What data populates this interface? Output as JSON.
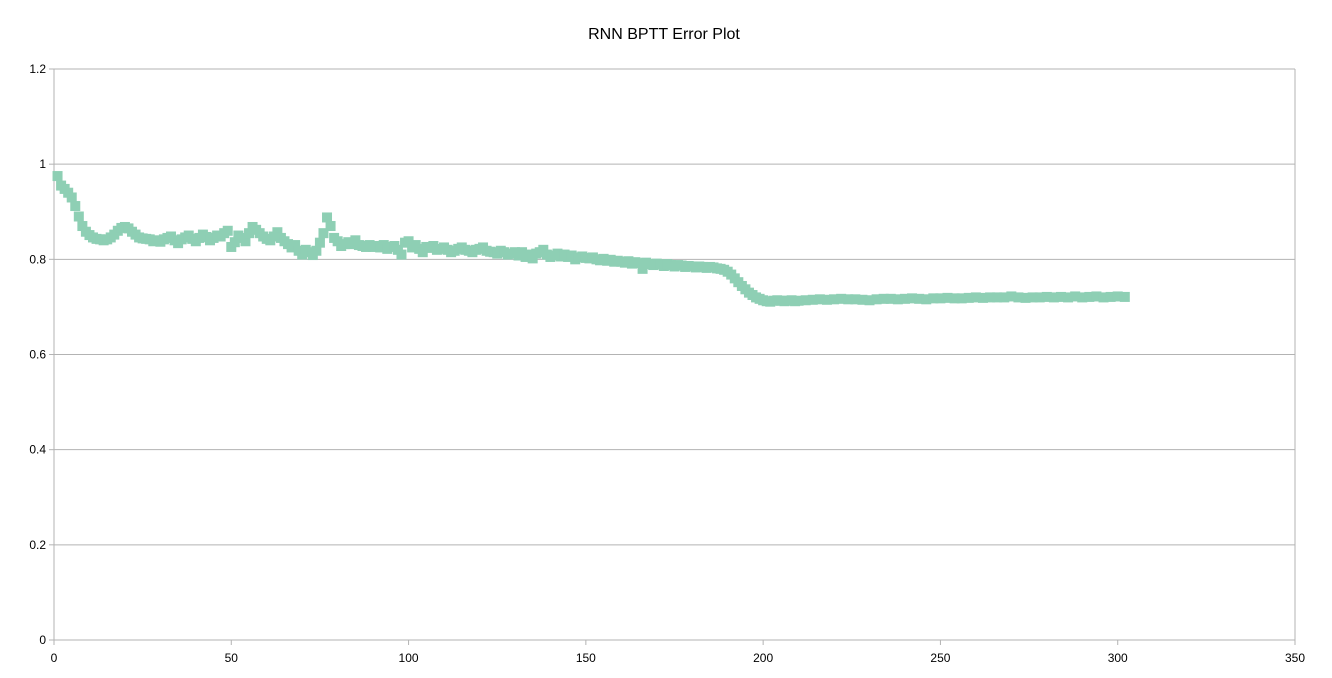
{
  "chart_data": {
    "type": "scatter",
    "title": "RNN BPTT Error Plot",
    "xlabel": "",
    "ylabel": "",
    "xlim": [
      0,
      350
    ],
    "ylim": [
      0,
      1.2
    ],
    "x_ticks": [
      0,
      50,
      100,
      150,
      200,
      250,
      300,
      350
    ],
    "y_ticks": [
      0,
      0.2,
      0.4,
      0.6,
      0.8,
      1,
      1.2
    ],
    "grid": true,
    "legend": "none",
    "marker": "square",
    "color": "#8ecfb4",
    "series": [
      {
        "points": [
          [
            1,
            0.975
          ],
          [
            2,
            0.955
          ],
          [
            3,
            0.948
          ],
          [
            4,
            0.94
          ],
          [
            5,
            0.93
          ],
          [
            6,
            0.912
          ],
          [
            7,
            0.89
          ],
          [
            8,
            0.87
          ],
          [
            9,
            0.858
          ],
          [
            10,
            0.851
          ],
          [
            11,
            0.846
          ],
          [
            12,
            0.843
          ],
          [
            13,
            0.842
          ],
          [
            14,
            0.84
          ],
          [
            15,
            0.842
          ],
          [
            16,
            0.846
          ],
          [
            17,
            0.852
          ],
          [
            18,
            0.86
          ],
          [
            19,
            0.866
          ],
          [
            20,
            0.868
          ],
          [
            21,
            0.865
          ],
          [
            22,
            0.858
          ],
          [
            23,
            0.852
          ],
          [
            24,
            0.846
          ],
          [
            25,
            0.844
          ],
          [
            26,
            0.843
          ],
          [
            27,
            0.842
          ],
          [
            28,
            0.838
          ],
          [
            29,
            0.84
          ],
          [
            30,
            0.837
          ],
          [
            31,
            0.842
          ],
          [
            32,
            0.845
          ],
          [
            33,
            0.848
          ],
          [
            34,
            0.84
          ],
          [
            35,
            0.834
          ],
          [
            36,
            0.842
          ],
          [
            37,
            0.846
          ],
          [
            38,
            0.85
          ],
          [
            39,
            0.843
          ],
          [
            40,
            0.838
          ],
          [
            41,
            0.845
          ],
          [
            42,
            0.852
          ],
          [
            43,
            0.847
          ],
          [
            44,
            0.84
          ],
          [
            45,
            0.845
          ],
          [
            46,
            0.85
          ],
          [
            47,
            0.848
          ],
          [
            48,
            0.855
          ],
          [
            49,
            0.86
          ],
          [
            50,
            0.826
          ],
          [
            51,
            0.836
          ],
          [
            52,
            0.85
          ],
          [
            53,
            0.845
          ],
          [
            54,
            0.838
          ],
          [
            55,
            0.855
          ],
          [
            56,
            0.868
          ],
          [
            57,
            0.862
          ],
          [
            58,
            0.855
          ],
          [
            59,
            0.848
          ],
          [
            60,
            0.843
          ],
          [
            61,
            0.84
          ],
          [
            62,
            0.848
          ],
          [
            63,
            0.857
          ],
          [
            64,
            0.845
          ],
          [
            65,
            0.838
          ],
          [
            66,
            0.832
          ],
          [
            67,
            0.825
          ],
          [
            68,
            0.83
          ],
          [
            69,
            0.818
          ],
          [
            70,
            0.81
          ],
          [
            71,
            0.82
          ],
          [
            72,
            0.815
          ],
          [
            73,
            0.809
          ],
          [
            74,
            0.818
          ],
          [
            75,
            0.835
          ],
          [
            76,
            0.855
          ],
          [
            77,
            0.888
          ],
          [
            78,
            0.87
          ],
          [
            79,
            0.845
          ],
          [
            80,
            0.838
          ],
          [
            81,
            0.828
          ],
          [
            82,
            0.832
          ],
          [
            83,
            0.836
          ],
          [
            84,
            0.832
          ],
          [
            85,
            0.84
          ],
          [
            86,
            0.83
          ],
          [
            87,
            0.828
          ],
          [
            88,
            0.826
          ],
          [
            89,
            0.83
          ],
          [
            90,
            0.826
          ],
          [
            91,
            0.828
          ],
          [
            92,
            0.825
          ],
          [
            93,
            0.83
          ],
          [
            94,
            0.822
          ],
          [
            95,
            0.826
          ],
          [
            96,
            0.828
          ],
          [
            97,
            0.82
          ],
          [
            98,
            0.81
          ],
          [
            99,
            0.835
          ],
          [
            100,
            0.838
          ],
          [
            101,
            0.825
          ],
          [
            102,
            0.83
          ],
          [
            103,
            0.822
          ],
          [
            104,
            0.815
          ],
          [
            105,
            0.826
          ],
          [
            106,
            0.824
          ],
          [
            107,
            0.828
          ],
          [
            108,
            0.82
          ],
          [
            109,
            0.822
          ],
          [
            110,
            0.825
          ],
          [
            111,
            0.82
          ],
          [
            112,
            0.815
          ],
          [
            113,
            0.818
          ],
          [
            114,
            0.822
          ],
          [
            115,
            0.825
          ],
          [
            116,
            0.82
          ],
          [
            117,
            0.818
          ],
          [
            118,
            0.815
          ],
          [
            119,
            0.82
          ],
          [
            120,
            0.822
          ],
          [
            121,
            0.825
          ],
          [
            122,
            0.818
          ],
          [
            123,
            0.816
          ],
          [
            124,
            0.815
          ],
          [
            125,
            0.812
          ],
          [
            126,
            0.818
          ],
          [
            127,
            0.815
          ],
          [
            128,
            0.81
          ],
          [
            129,
            0.812
          ],
          [
            130,
            0.815
          ],
          [
            131,
            0.808
          ],
          [
            132,
            0.815
          ],
          [
            133,
            0.805
          ],
          [
            134,
            0.81
          ],
          [
            135,
            0.802
          ],
          [
            136,
            0.812
          ],
          [
            137,
            0.815
          ],
          [
            138,
            0.82
          ],
          [
            139,
            0.81
          ],
          [
            140,
            0.805
          ],
          [
            141,
            0.808
          ],
          [
            142,
            0.812
          ],
          [
            143,
            0.806
          ],
          [
            144,
            0.81
          ],
          [
            145,
            0.805
          ],
          [
            146,
            0.808
          ],
          [
            147,
            0.8
          ],
          [
            148,
            0.804
          ],
          [
            149,
            0.806
          ],
          [
            150,
            0.803
          ],
          [
            151,
            0.802
          ],
          [
            152,
            0.804
          ],
          [
            153,
            0.8
          ],
          [
            154,
            0.798
          ],
          [
            155,
            0.801
          ],
          [
            156,
            0.797
          ],
          [
            157,
            0.799
          ],
          [
            158,
            0.795
          ],
          [
            159,
            0.797
          ],
          [
            160,
            0.795
          ],
          [
            161,
            0.793
          ],
          [
            162,
            0.796
          ],
          [
            163,
            0.791
          ],
          [
            164,
            0.794
          ],
          [
            165,
            0.792
          ],
          [
            166,
            0.78
          ],
          [
            167,
            0.793
          ],
          [
            168,
            0.79
          ],
          [
            169,
            0.788
          ],
          [
            170,
            0.791
          ],
          [
            171,
            0.789
          ],
          [
            172,
            0.786
          ],
          [
            173,
            0.79
          ],
          [
            174,
            0.788
          ],
          [
            175,
            0.785
          ],
          [
            176,
            0.788
          ],
          [
            177,
            0.787
          ],
          [
            178,
            0.784
          ],
          [
            179,
            0.786
          ],
          [
            180,
            0.785
          ],
          [
            181,
            0.783
          ],
          [
            182,
            0.785
          ],
          [
            183,
            0.784
          ],
          [
            184,
            0.782
          ],
          [
            185,
            0.784
          ],
          [
            186,
            0.783
          ],
          [
            187,
            0.781
          ],
          [
            188,
            0.78
          ],
          [
            189,
            0.778
          ],
          [
            190,
            0.774
          ],
          [
            191,
            0.768
          ],
          [
            192,
            0.76
          ],
          [
            193,
            0.752
          ],
          [
            194,
            0.744
          ],
          [
            195,
            0.737
          ],
          [
            196,
            0.73
          ],
          [
            197,
            0.725
          ],
          [
            198,
            0.72
          ],
          [
            199,
            0.717
          ],
          [
            200,
            0.714
          ],
          [
            201,
            0.712
          ],
          [
            202,
            0.711
          ],
          [
            203,
            0.713
          ],
          [
            204,
            0.714
          ],
          [
            205,
            0.713
          ],
          [
            206,
            0.712
          ],
          [
            207,
            0.713
          ],
          [
            208,
            0.714
          ],
          [
            209,
            0.712
          ],
          [
            210,
            0.713
          ],
          [
            212,
            0.714
          ],
          [
            214,
            0.715
          ],
          [
            216,
            0.716
          ],
          [
            218,
            0.715
          ],
          [
            220,
            0.716
          ],
          [
            222,
            0.717
          ],
          [
            224,
            0.716
          ],
          [
            226,
            0.716
          ],
          [
            228,
            0.715
          ],
          [
            230,
            0.714
          ],
          [
            232,
            0.716
          ],
          [
            234,
            0.717
          ],
          [
            236,
            0.717
          ],
          [
            238,
            0.716
          ],
          [
            240,
            0.717
          ],
          [
            242,
            0.718
          ],
          [
            244,
            0.717
          ],
          [
            246,
            0.716
          ],
          [
            248,
            0.718
          ],
          [
            250,
            0.718
          ],
          [
            252,
            0.719
          ],
          [
            254,
            0.718
          ],
          [
            256,
            0.718
          ],
          [
            258,
            0.719
          ],
          [
            260,
            0.72
          ],
          [
            262,
            0.719
          ],
          [
            264,
            0.72
          ],
          [
            266,
            0.72
          ],
          [
            268,
            0.72
          ],
          [
            270,
            0.722
          ],
          [
            272,
            0.72
          ],
          [
            274,
            0.719
          ],
          [
            276,
            0.72
          ],
          [
            278,
            0.72
          ],
          [
            280,
            0.721
          ],
          [
            282,
            0.72
          ],
          [
            284,
            0.721
          ],
          [
            286,
            0.72
          ],
          [
            288,
            0.722
          ],
          [
            290,
            0.72
          ],
          [
            292,
            0.721
          ],
          [
            294,
            0.722
          ],
          [
            296,
            0.72
          ],
          [
            298,
            0.721
          ],
          [
            300,
            0.722
          ],
          [
            302,
            0.721
          ]
        ]
      }
    ]
  }
}
